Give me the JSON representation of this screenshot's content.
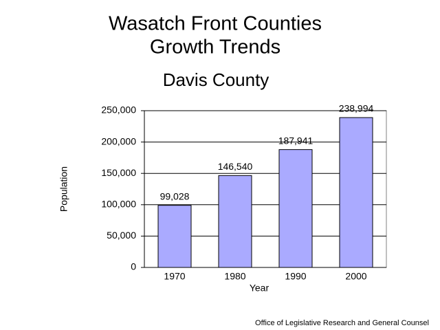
{
  "chart_data": {
    "type": "bar",
    "title": [
      "Wasatch Front Counties",
      "Growth Trends"
    ],
    "subtitle": "Davis County",
    "x_label": "Year",
    "y_label": "Population",
    "source": "Office of Legislative Research and General Counsel",
    "categories": [
      "1970",
      "1980",
      "1990",
      "2000"
    ],
    "values": [
      99028,
      146540,
      187941,
      238994
    ],
    "value_labels": [
      "99,028",
      "146,540",
      "187,941",
      "238,994"
    ],
    "color": "#aaaaff",
    "ylim": [
      0,
      250000
    ],
    "yticks": [
      0,
      {
        "value": 50000,
        "label": "50,000"
      },
      {
        "value": 100000,
        "label": "100,000"
      },
      {
        "value": 150000,
        "label": "150,000"
      },
      {
        "value": 200000,
        "label": "200,000"
      },
      {
        "value": 250000,
        "label": "250,000"
      }
    ],
    "grid": true
  }
}
